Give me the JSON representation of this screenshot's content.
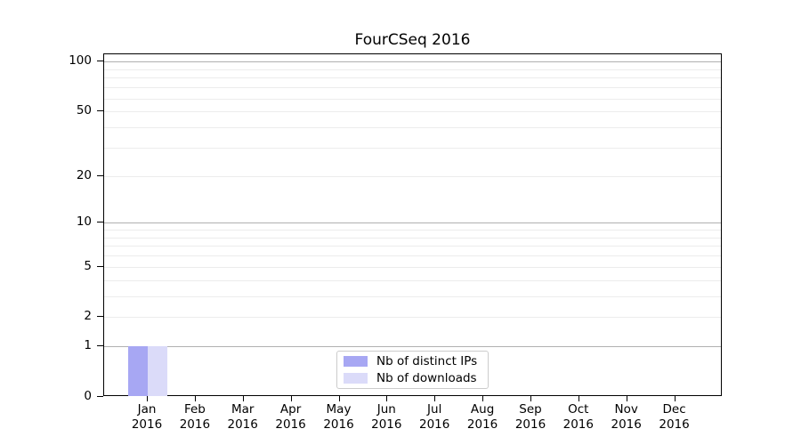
{
  "title": "FourCSeq 2016",
  "chart_data": {
    "type": "bar",
    "title": "FourCSeq 2016",
    "xlabel": "",
    "ylabel": "",
    "scale": "log1p",
    "ylim": [
      0,
      111
    ],
    "categories": [
      {
        "month": "Jan",
        "year": "2016"
      },
      {
        "month": "Feb",
        "year": "2016"
      },
      {
        "month": "Mar",
        "year": "2016"
      },
      {
        "month": "Apr",
        "year": "2016"
      },
      {
        "month": "May",
        "year": "2016"
      },
      {
        "month": "Jun",
        "year": "2016"
      },
      {
        "month": "Jul",
        "year": "2016"
      },
      {
        "month": "Aug",
        "year": "2016"
      },
      {
        "month": "Sep",
        "year": "2016"
      },
      {
        "month": "Oct",
        "year": "2016"
      },
      {
        "month": "Nov",
        "year": "2016"
      },
      {
        "month": "Dec",
        "year": "2016"
      }
    ],
    "series": [
      {
        "name": "Nb of distinct IPs",
        "color": "#a7a7f3",
        "values": [
          1,
          0,
          0,
          0,
          0,
          0,
          0,
          0,
          0,
          0,
          0,
          0
        ]
      },
      {
        "name": "Nb of downloads",
        "color": "#dbdbf9",
        "values": [
          1,
          0,
          0,
          0,
          0,
          0,
          0,
          0,
          0,
          0,
          0,
          0
        ]
      }
    ],
    "y_ticks": [
      {
        "value": 0,
        "label": "0"
      },
      {
        "value": 1,
        "label": "1"
      },
      {
        "value": 2,
        "label": "2"
      },
      {
        "value": 5,
        "label": "5"
      },
      {
        "value": 10,
        "label": "10"
      },
      {
        "value": 20,
        "label": "20"
      },
      {
        "value": 50,
        "label": "50"
      },
      {
        "value": 100,
        "label": "100"
      }
    ],
    "grid": {
      "major_values": [
        1,
        10,
        100
      ],
      "major_color": "#b0b0b0",
      "minor_values": [
        2,
        3,
        4,
        5,
        6,
        7,
        8,
        9,
        20,
        30,
        40,
        50,
        60,
        70,
        80,
        90
      ],
      "minor_color": "#ececec"
    },
    "legend": {
      "position": "lower center",
      "entries": [
        "Nb of distinct IPs",
        "Nb of downloads"
      ]
    }
  }
}
